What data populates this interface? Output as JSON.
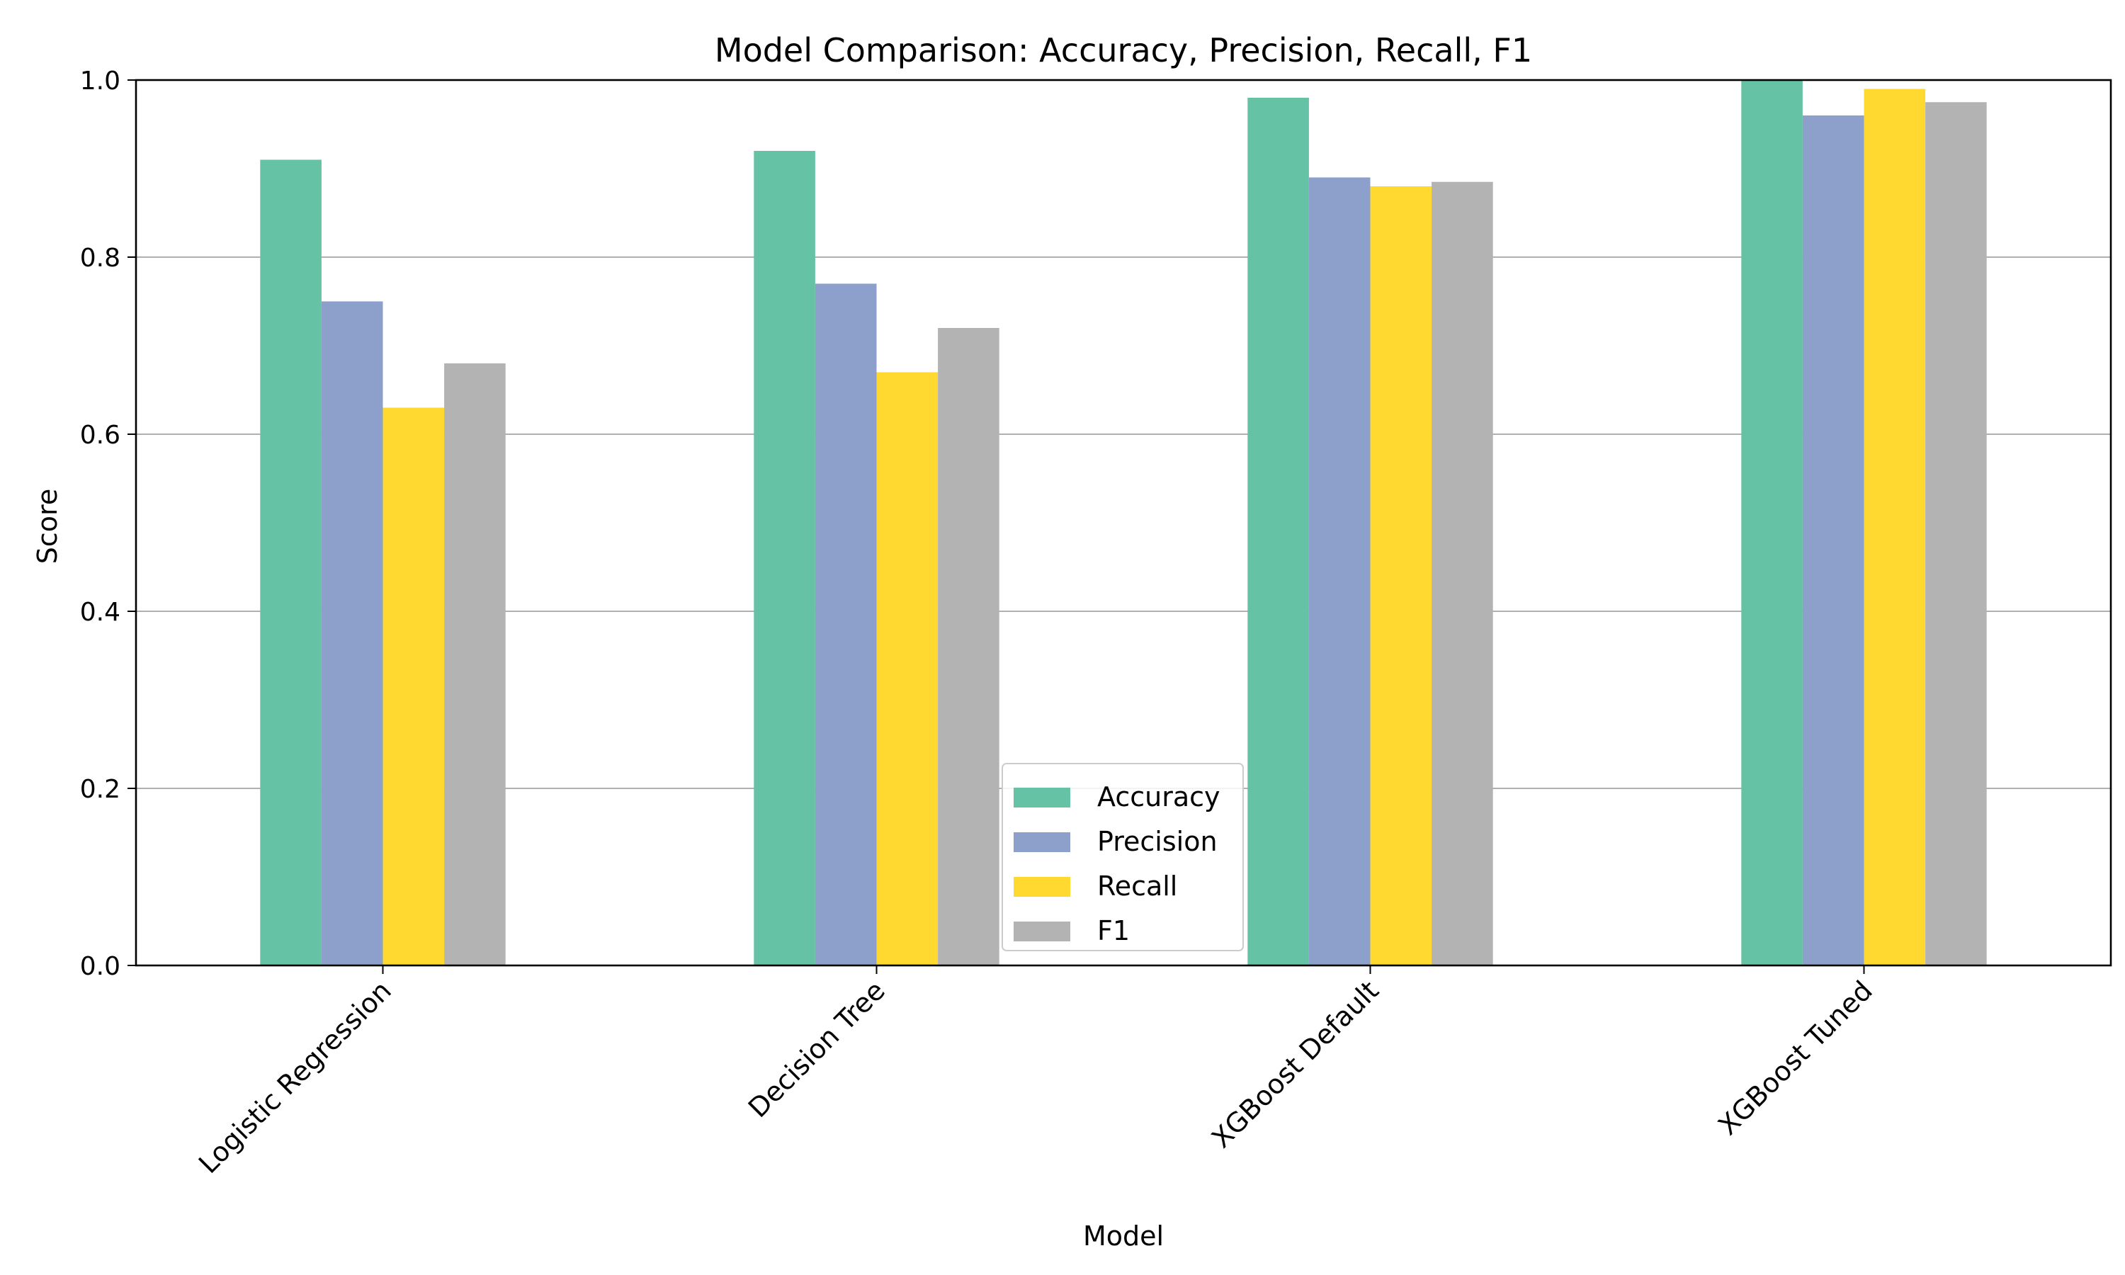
{
  "chart_data": {
    "type": "bar",
    "title": "Model Comparison: Accuracy, Precision, Recall, F1",
    "xlabel": "Model",
    "ylabel": "Score",
    "categories": [
      "Logistic Regression",
      "Decision Tree",
      "XGBoost Default",
      "XGBoost Tuned"
    ],
    "series": [
      {
        "name": "Accuracy",
        "color": "#66c2a5",
        "values": [
          0.91,
          0.92,
          0.98,
          1.0
        ]
      },
      {
        "name": "Precision",
        "color": "#8da0cb",
        "values": [
          0.75,
          0.77,
          0.89,
          0.96
        ]
      },
      {
        "name": "Recall",
        "color": "#ffd92f",
        "values": [
          0.63,
          0.67,
          0.88,
          0.99
        ]
      },
      {
        "name": "F1",
        "color": "#b3b3b3",
        "values": [
          0.68,
          0.72,
          0.885,
          0.975
        ]
      }
    ],
    "ylim": [
      0,
      1.0
    ],
    "yticks": [
      "0.0",
      "0.2",
      "0.4",
      "0.6",
      "0.8",
      "1.0"
    ],
    "grid": "y",
    "legend": "bottom-center",
    "xtick_rotation": 45
  }
}
